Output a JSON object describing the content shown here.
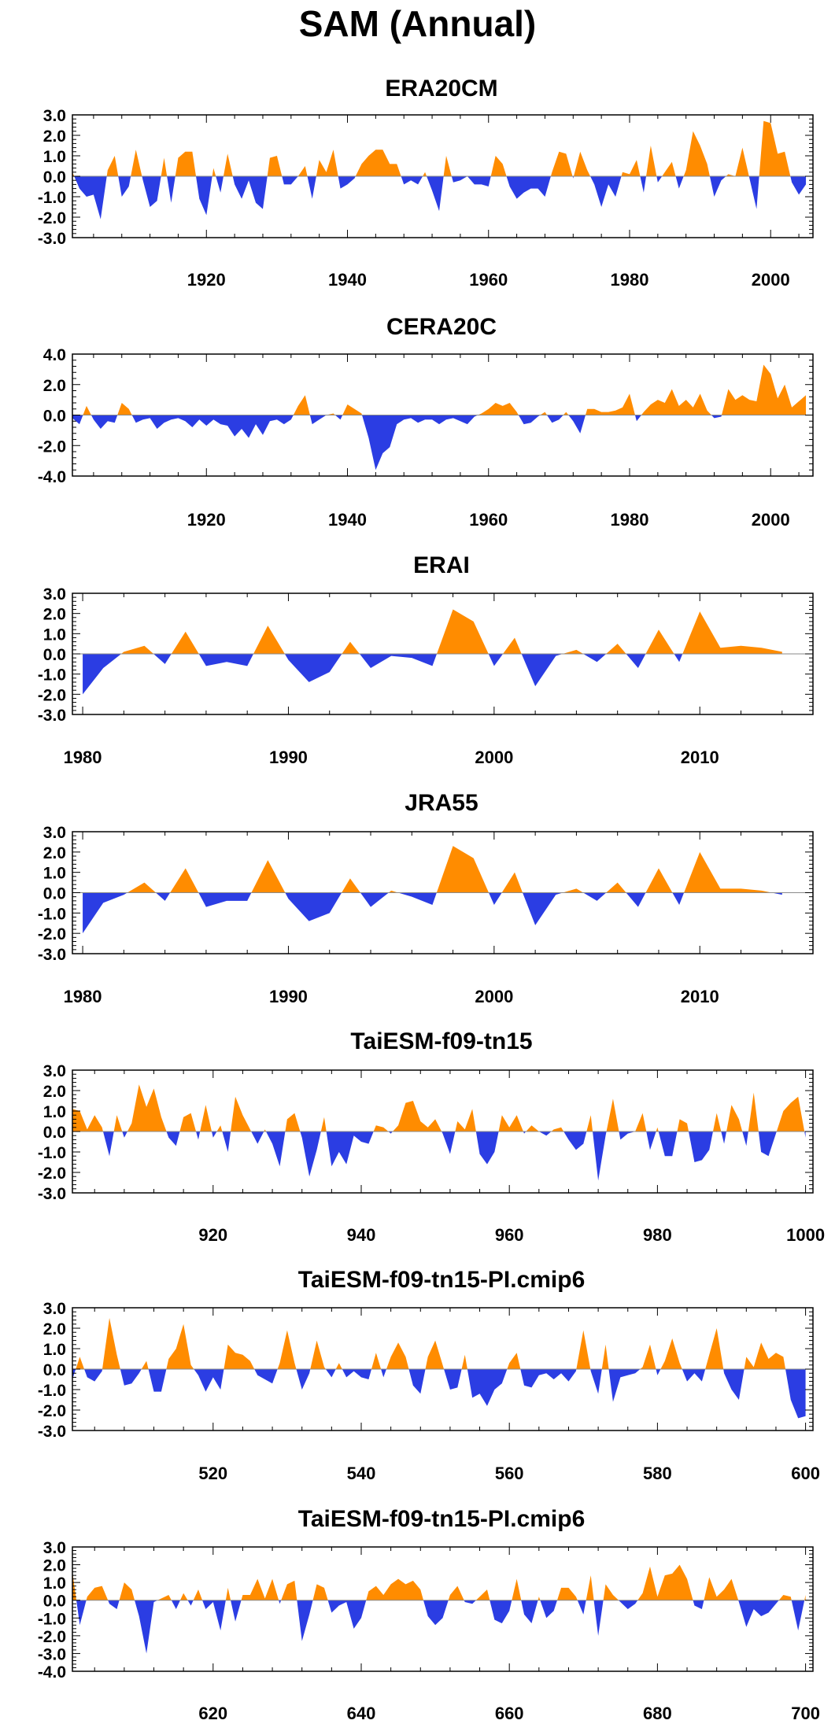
{
  "title": "SAM (Annual)",
  "colors": {
    "positive": "#ff8c00",
    "negative": "#2b3de3",
    "axis": "#000000",
    "zero_line": "#8a8a8a"
  },
  "chart_data": [
    {
      "type": "area",
      "title": "ERA20CM",
      "xlabel": "",
      "ylabel": "",
      "xlim": [
        1901,
        2006
      ],
      "ylim": [
        -3,
        3
      ],
      "xticks": [
        1920,
        1940,
        1960,
        1980,
        2000
      ],
      "yticks": [
        -3,
        -2,
        -1,
        0,
        1,
        2,
        3
      ],
      "ytick_labels": [
        "-3.0",
        "-2.0",
        "-1.0",
        "0.0",
        "1.0",
        "2.0",
        "3.0"
      ],
      "x": [
        1901,
        1902,
        1903,
        1904,
        1905,
        1906,
        1907,
        1908,
        1909,
        1910,
        1911,
        1912,
        1913,
        1914,
        1915,
        1916,
        1917,
        1918,
        1919,
        1920,
        1921,
        1922,
        1923,
        1924,
        1925,
        1926,
        1927,
        1928,
        1929,
        1930,
        1931,
        1932,
        1933,
        1934,
        1935,
        1936,
        1937,
        1938,
        1939,
        1940,
        1941,
        1942,
        1943,
        1944,
        1945,
        1946,
        1947,
        1948,
        1949,
        1950,
        1951,
        1952,
        1953,
        1954,
        1955,
        1956,
        1957,
        1958,
        1959,
        1960,
        1961,
        1962,
        1963,
        1964,
        1965,
        1966,
        1967,
        1968,
        1969,
        1970,
        1971,
        1972,
        1973,
        1974,
        1975,
        1976,
        1977,
        1978,
        1979,
        1980,
        1981,
        1982,
        1983,
        1984,
        1985,
        1986,
        1987,
        1988,
        1989,
        1990,
        1991,
        1992,
        1993,
        1994,
        1995,
        1996,
        1997,
        1998,
        1999,
        2000,
        2001,
        2002,
        2003,
        2004,
        2005
      ],
      "values": [
        0.2,
        -0.6,
        -1.0,
        -0.9,
        -2.1,
        0.3,
        1.0,
        -1.0,
        -0.5,
        1.3,
        -0.2,
        -1.5,
        -1.2,
        0.9,
        -1.3,
        0.9,
        1.2,
        1.2,
        -1.1,
        -1.9,
        0.4,
        -0.8,
        1.1,
        -0.4,
        -1.1,
        -0.2,
        -1.3,
        -1.6,
        0.9,
        1.0,
        -0.4,
        -0.4,
        0.0,
        0.5,
        -1.1,
        0.8,
        0.2,
        1.3,
        -0.6,
        -0.4,
        -0.1,
        0.6,
        1.0,
        1.3,
        1.3,
        0.6,
        0.6,
        -0.4,
        -0.2,
        -0.4,
        0.2,
        -0.7,
        -1.7,
        1.0,
        -0.3,
        -0.2,
        0.0,
        -0.4,
        -0.4,
        -0.5,
        1.0,
        0.6,
        -0.5,
        -1.1,
        -0.8,
        -0.6,
        -0.6,
        -1.0,
        0.2,
        1.2,
        1.1,
        -0.1,
        1.2,
        0.3,
        -0.4,
        -1.5,
        -0.4,
        -1.0,
        0.2,
        0.1,
        0.8,
        -0.8,
        1.5,
        -0.3,
        0.2,
        0.7,
        -0.6,
        0.3,
        2.2,
        1.5,
        0.6,
        -1.0,
        -0.2,
        0.1,
        0.0,
        1.4,
        -0.1,
        -1.6,
        2.7,
        2.6,
        1.1,
        1.2,
        -0.3,
        -0.9,
        -0.4
      ]
    },
    {
      "type": "area",
      "title": "CERA20C",
      "xlabel": "",
      "ylabel": "",
      "xlim": [
        1901,
        2006
      ],
      "ylim": [
        -4,
        4
      ],
      "xticks": [
        1920,
        1940,
        1960,
        1980,
        2000
      ],
      "yticks": [
        -4,
        -2,
        0,
        2,
        4
      ],
      "ytick_labels": [
        "-4.0",
        "-2.0",
        "0.0",
        "2.0",
        "4.0"
      ],
      "x": [
        1901,
        1902,
        1903,
        1904,
        1905,
        1906,
        1907,
        1908,
        1909,
        1910,
        1911,
        1912,
        1913,
        1914,
        1915,
        1916,
        1917,
        1918,
        1919,
        1920,
        1921,
        1922,
        1923,
        1924,
        1925,
        1926,
        1927,
        1928,
        1929,
        1930,
        1931,
        1932,
        1933,
        1934,
        1935,
        1936,
        1937,
        1938,
        1939,
        1940,
        1941,
        1942,
        1943,
        1944,
        1945,
        1946,
        1947,
        1948,
        1949,
        1950,
        1951,
        1952,
        1953,
        1954,
        1955,
        1956,
        1957,
        1958,
        1959,
        1960,
        1961,
        1962,
        1963,
        1964,
        1965,
        1966,
        1967,
        1968,
        1969,
        1970,
        1971,
        1972,
        1973,
        1974,
        1975,
        1976,
        1977,
        1978,
        1979,
        1980,
        1981,
        1982,
        1983,
        1984,
        1985,
        1986,
        1987,
        1988,
        1989,
        1990,
        1991,
        1992,
        1993,
        1994,
        1995,
        1996,
        1997,
        1998,
        1999,
        2000,
        2001,
        2002,
        2003,
        2004,
        2005
      ],
      "values": [
        -0.2,
        -0.6,
        0.6,
        -0.3,
        -0.9,
        -0.4,
        -0.5,
        0.8,
        0.4,
        -0.5,
        -0.3,
        -0.2,
        -0.9,
        -0.5,
        -0.3,
        -0.2,
        -0.4,
        -0.8,
        -0.3,
        -0.7,
        -0.3,
        -0.6,
        -0.7,
        -1.4,
        -0.9,
        -1.5,
        -0.6,
        -1.3,
        -0.4,
        -0.3,
        -0.6,
        -0.3,
        0.6,
        1.3,
        -0.6,
        -0.3,
        0.0,
        0.1,
        -0.3,
        0.7,
        0.4,
        0.1,
        -1.5,
        -3.6,
        -2.5,
        -2.1,
        -0.6,
        -0.3,
        -0.2,
        -0.5,
        -0.3,
        -0.3,
        -0.6,
        -0.3,
        -0.2,
        -0.4,
        -0.6,
        -0.1,
        0.1,
        0.4,
        0.8,
        0.6,
        0.8,
        0.2,
        -0.6,
        -0.5,
        -0.1,
        0.2,
        -0.5,
        -0.3,
        0.2,
        -0.4,
        -1.2,
        0.4,
        0.4,
        0.2,
        0.2,
        0.3,
        0.5,
        1.4,
        -0.4,
        0.2,
        0.7,
        1.0,
        0.8,
        1.7,
        0.6,
        1.0,
        0.5,
        1.4,
        0.3,
        -0.2,
        -0.1,
        1.7,
        1.0,
        1.3,
        1.0,
        0.9,
        3.3,
        2.7,
        1.1,
        2.0,
        0.5,
        0.9,
        1.3
      ]
    },
    {
      "type": "area",
      "title": "ERAI",
      "xlabel": "",
      "ylabel": "",
      "xlim": [
        1979.5,
        2015.5
      ],
      "ylim": [
        -3,
        3
      ],
      "xticks": [
        1980,
        1990,
        2000,
        2010
      ],
      "yticks": [
        -3,
        -2,
        -1,
        0,
        1,
        2,
        3
      ],
      "ytick_labels": [
        "-3.0",
        "-2.0",
        "-1.0",
        "0.0",
        "1.0",
        "2.0",
        "3.0"
      ],
      "x": [
        1980,
        1981,
        1982,
        1983,
        1984,
        1985,
        1986,
        1987,
        1988,
        1989,
        1990,
        1991,
        1992,
        1993,
        1994,
        1995,
        1996,
        1997,
        1998,
        1999,
        2000,
        2001,
        2002,
        2003,
        2004,
        2005,
        2006,
        2007,
        2008,
        2009,
        2010,
        2011,
        2012,
        2013,
        2014
      ],
      "values": [
        -2.0,
        -0.7,
        0.1,
        0.4,
        -0.5,
        1.1,
        -0.6,
        -0.4,
        -0.6,
        1.4,
        -0.3,
        -1.4,
        -0.9,
        0.6,
        -0.7,
        -0.1,
        -0.2,
        -0.6,
        2.2,
        1.6,
        -0.6,
        0.8,
        -1.6,
        -0.1,
        0.2,
        -0.4,
        0.5,
        -0.7,
        1.2,
        -0.4,
        2.1,
        0.3,
        0.4,
        0.3,
        0.1
      ]
    },
    {
      "type": "area",
      "title": "JRA55",
      "xlabel": "",
      "ylabel": "",
      "xlim": [
        1979.5,
        2015.5
      ],
      "ylim": [
        -3,
        3
      ],
      "xticks": [
        1980,
        1990,
        2000,
        2010
      ],
      "yticks": [
        -3,
        -2,
        -1,
        0,
        1,
        2,
        3
      ],
      "ytick_labels": [
        "-3.0",
        "-2.0",
        "-1.0",
        "0.0",
        "1.0",
        "2.0",
        "3.0"
      ],
      "x": [
        1980,
        1981,
        1982,
        1983,
        1984,
        1985,
        1986,
        1987,
        1988,
        1989,
        1990,
        1991,
        1992,
        1993,
        1994,
        1995,
        1996,
        1997,
        1998,
        1999,
        2000,
        2001,
        2002,
        2003,
        2004,
        2005,
        2006,
        2007,
        2008,
        2009,
        2010,
        2011,
        2012,
        2013,
        2014
      ],
      "values": [
        -2.0,
        -0.5,
        -0.1,
        0.5,
        -0.4,
        1.2,
        -0.7,
        -0.4,
        -0.4,
        1.6,
        -0.3,
        -1.4,
        -1.0,
        0.7,
        -0.7,
        0.1,
        -0.2,
        -0.6,
        2.3,
        1.7,
        -0.6,
        1.0,
        -1.6,
        -0.1,
        0.2,
        -0.4,
        0.5,
        -0.7,
        1.2,
        -0.6,
        2.0,
        0.2,
        0.2,
        0.1,
        -0.1
      ]
    },
    {
      "type": "area",
      "title": "TaiESM-f09-tn15",
      "xlabel": "",
      "ylabel": "",
      "xlim": [
        901,
        1001
      ],
      "ylim": [
        -3,
        3
      ],
      "xticks": [
        920,
        940,
        960,
        980,
        1000
      ],
      "yticks": [
        -3,
        -2,
        -1,
        0,
        1,
        2,
        3
      ],
      "ytick_labels": [
        "-3.0",
        "-2.0",
        "-1.0",
        "0.0",
        "1.0",
        "2.0",
        "3.0"
      ],
      "x": [
        901,
        902,
        903,
        904,
        905,
        906,
        907,
        908,
        909,
        910,
        911,
        912,
        913,
        914,
        915,
        916,
        917,
        918,
        919,
        920,
        921,
        922,
        923,
        924,
        925,
        926,
        927,
        928,
        929,
        930,
        931,
        932,
        933,
        934,
        935,
        936,
        937,
        938,
        939,
        940,
        941,
        942,
        943,
        944,
        945,
        946,
        947,
        948,
        949,
        950,
        951,
        952,
        953,
        954,
        955,
        956,
        957,
        958,
        959,
        960,
        961,
        962,
        963,
        964,
        965,
        966,
        967,
        968,
        969,
        970,
        971,
        972,
        973,
        974,
        975,
        976,
        977,
        978,
        979,
        980,
        981,
        982,
        983,
        984,
        985,
        986,
        987,
        988,
        989,
        990,
        991,
        992,
        993,
        994,
        995,
        996,
        997,
        998,
        999,
        1000
      ],
      "values": [
        1.1,
        1.0,
        0.1,
        0.8,
        0.2,
        -1.2,
        0.8,
        -0.3,
        0.4,
        2.3,
        1.2,
        2.1,
        0.7,
        -0.3,
        -0.7,
        0.7,
        0.9,
        -0.4,
        1.3,
        -0.3,
        0.3,
        -1.0,
        1.7,
        0.8,
        0.1,
        -0.6,
        0.1,
        -0.6,
        -1.7,
        0.6,
        0.9,
        -0.3,
        -2.2,
        -0.9,
        0.7,
        -1.7,
        -1.0,
        -1.6,
        -0.2,
        -0.5,
        -0.6,
        0.3,
        0.2,
        -0.1,
        0.3,
        1.4,
        1.5,
        0.5,
        0.2,
        0.6,
        -0.1,
        -1.1,
        0.5,
        0.1,
        1.1,
        -1.1,
        -1.6,
        -1.0,
        0.8,
        0.2,
        0.8,
        -0.1,
        0.3,
        0.0,
        -0.2,
        0.1,
        0.2,
        -0.4,
        -0.9,
        -0.6,
        0.8,
        -2.4,
        -0.2,
        1.6,
        -0.4,
        -0.1,
        0.0,
        0.9,
        -0.9,
        0.2,
        -1.2,
        -1.2,
        0.6,
        0.4,
        -1.5,
        -1.4,
        -0.9,
        0.9,
        -0.6,
        1.3,
        0.6,
        -0.7,
        1.9,
        -1.0,
        -1.2,
        -0.1,
        1.0,
        1.4,
        1.7,
        -0.3
      ]
    },
    {
      "type": "area",
      "title": "TaiESM-f09-tn15-PI.cmip6",
      "xlabel": "",
      "ylabel": "",
      "xlim": [
        501,
        601
      ],
      "ylim": [
        -3,
        3
      ],
      "xticks": [
        520,
        540,
        560,
        580,
        600
      ],
      "yticks": [
        -3,
        -2,
        -1,
        0,
        1,
        2,
        3
      ],
      "ytick_labels": [
        "-3.0",
        "-2.0",
        "-1.0",
        "0.0",
        "1.0",
        "2.0",
        "3.0"
      ],
      "x": [
        501,
        502,
        503,
        504,
        505,
        506,
        507,
        508,
        509,
        510,
        511,
        512,
        513,
        514,
        515,
        516,
        517,
        518,
        519,
        520,
        521,
        522,
        523,
        524,
        525,
        526,
        527,
        528,
        529,
        530,
        531,
        532,
        533,
        534,
        535,
        536,
        537,
        538,
        539,
        540,
        541,
        542,
        543,
        544,
        545,
        546,
        547,
        548,
        549,
        550,
        551,
        552,
        553,
        554,
        555,
        556,
        557,
        558,
        559,
        560,
        561,
        562,
        563,
        564,
        565,
        566,
        567,
        568,
        569,
        570,
        571,
        572,
        573,
        574,
        575,
        576,
        577,
        578,
        579,
        580,
        581,
        582,
        583,
        584,
        585,
        586,
        587,
        588,
        589,
        590,
        591,
        592,
        593,
        594,
        595,
        596,
        597,
        598,
        599,
        600
      ],
      "values": [
        -0.5,
        0.6,
        -0.4,
        -0.6,
        -0.1,
        2.5,
        0.7,
        -0.8,
        -0.7,
        -0.2,
        0.4,
        -1.1,
        -1.1,
        0.5,
        1.0,
        2.2,
        0.2,
        -0.3,
        -1.1,
        -0.4,
        -1.0,
        1.2,
        0.8,
        0.7,
        0.4,
        -0.3,
        -0.5,
        -0.7,
        0.3,
        1.9,
        0.3,
        -1.0,
        -0.2,
        1.4,
        0.1,
        -0.4,
        0.3,
        -0.4,
        -0.1,
        -0.4,
        -0.5,
        0.8,
        -0.4,
        0.6,
        1.3,
        0.6,
        -0.8,
        -1.2,
        0.6,
        1.4,
        0.2,
        -1.0,
        -0.9,
        0.7,
        -1.4,
        -1.2,
        -1.8,
        -1.0,
        -0.7,
        0.3,
        0.8,
        -0.8,
        -0.9,
        -0.3,
        -0.2,
        -0.5,
        -0.2,
        -0.6,
        -0.1,
        1.9,
        -0.1,
        -1.2,
        1.2,
        -1.6,
        -0.4,
        -0.3,
        -0.2,
        0.1,
        1.2,
        -0.3,
        0.4,
        1.5,
        0.3,
        -0.6,
        -0.2,
        -0.6,
        0.7,
        2.0,
        -0.2,
        -1.0,
        -1.5,
        0.6,
        0.1,
        1.3,
        0.5,
        0.8,
        0.6,
        -1.5,
        -2.4,
        -2.3
      ]
    },
    {
      "type": "area",
      "title": "TaiESM-f09-tn15-PI.cmip6",
      "xlabel": "",
      "ylabel": "",
      "xlim": [
        601,
        701
      ],
      "ylim": [
        -4,
        3
      ],
      "xticks": [
        620,
        640,
        660,
        680,
        700
      ],
      "yticks": [
        -4,
        -3,
        -2,
        -1,
        0,
        1,
        2,
        3
      ],
      "ytick_labels": [
        "-4.0",
        "-3.0",
        "-2.0",
        "-1.0",
        "0.0",
        "1.0",
        "2.0",
        "3.0"
      ],
      "x": [
        601,
        602,
        603,
        604,
        605,
        606,
        607,
        608,
        609,
        610,
        611,
        612,
        613,
        614,
        615,
        616,
        617,
        618,
        619,
        620,
        621,
        622,
        623,
        624,
        625,
        626,
        627,
        628,
        629,
        630,
        631,
        632,
        633,
        634,
        635,
        636,
        637,
        638,
        639,
        640,
        641,
        642,
        643,
        644,
        645,
        646,
        647,
        648,
        649,
        650,
        651,
        652,
        653,
        654,
        655,
        656,
        657,
        658,
        659,
        660,
        661,
        662,
        663,
        664,
        665,
        666,
        667,
        668,
        669,
        670,
        671,
        672,
        673,
        674,
        675,
        676,
        677,
        678,
        679,
        680,
        681,
        682,
        683,
        684,
        685,
        686,
        687,
        688,
        689,
        690,
        691,
        692,
        693,
        694,
        695,
        696,
        697,
        698,
        699,
        700
      ],
      "values": [
        1.6,
        -1.4,
        0.2,
        0.7,
        0.8,
        -0.2,
        -0.5,
        1.0,
        0.6,
        -0.9,
        -3.0,
        -0.1,
        0.1,
        0.3,
        -0.5,
        0.4,
        -0.3,
        0.6,
        -0.5,
        -0.1,
        -1.7,
        0.7,
        -1.2,
        0.3,
        0.3,
        1.2,
        0.1,
        1.2,
        -0.2,
        0.9,
        1.1,
        -2.3,
        -0.8,
        0.9,
        0.7,
        -0.7,
        -0.3,
        -0.1,
        -1.6,
        -1.0,
        0.5,
        0.8,
        0.3,
        0.9,
        1.2,
        0.9,
        1.1,
        0.6,
        -0.9,
        -1.4,
        -1.0,
        0.3,
        0.8,
        -0.1,
        -0.2,
        0.2,
        0.6,
        -1.1,
        -1.3,
        -0.6,
        1.2,
        -0.8,
        -1.3,
        0.2,
        -1.0,
        -0.6,
        0.7,
        0.7,
        0.2,
        -0.8,
        1.4,
        -2.0,
        0.9,
        0.3,
        -0.1,
        -0.5,
        -0.2,
        0.4,
        1.9,
        0.2,
        1.4,
        1.5,
        2.0,
        1.2,
        -0.3,
        -0.5,
        1.3,
        0.2,
        0.6,
        1.2,
        -0.1,
        -1.5,
        -0.5,
        -0.9,
        -0.7,
        -0.2,
        0.3,
        0.2,
        -1.7,
        0.3
      ]
    }
  ]
}
